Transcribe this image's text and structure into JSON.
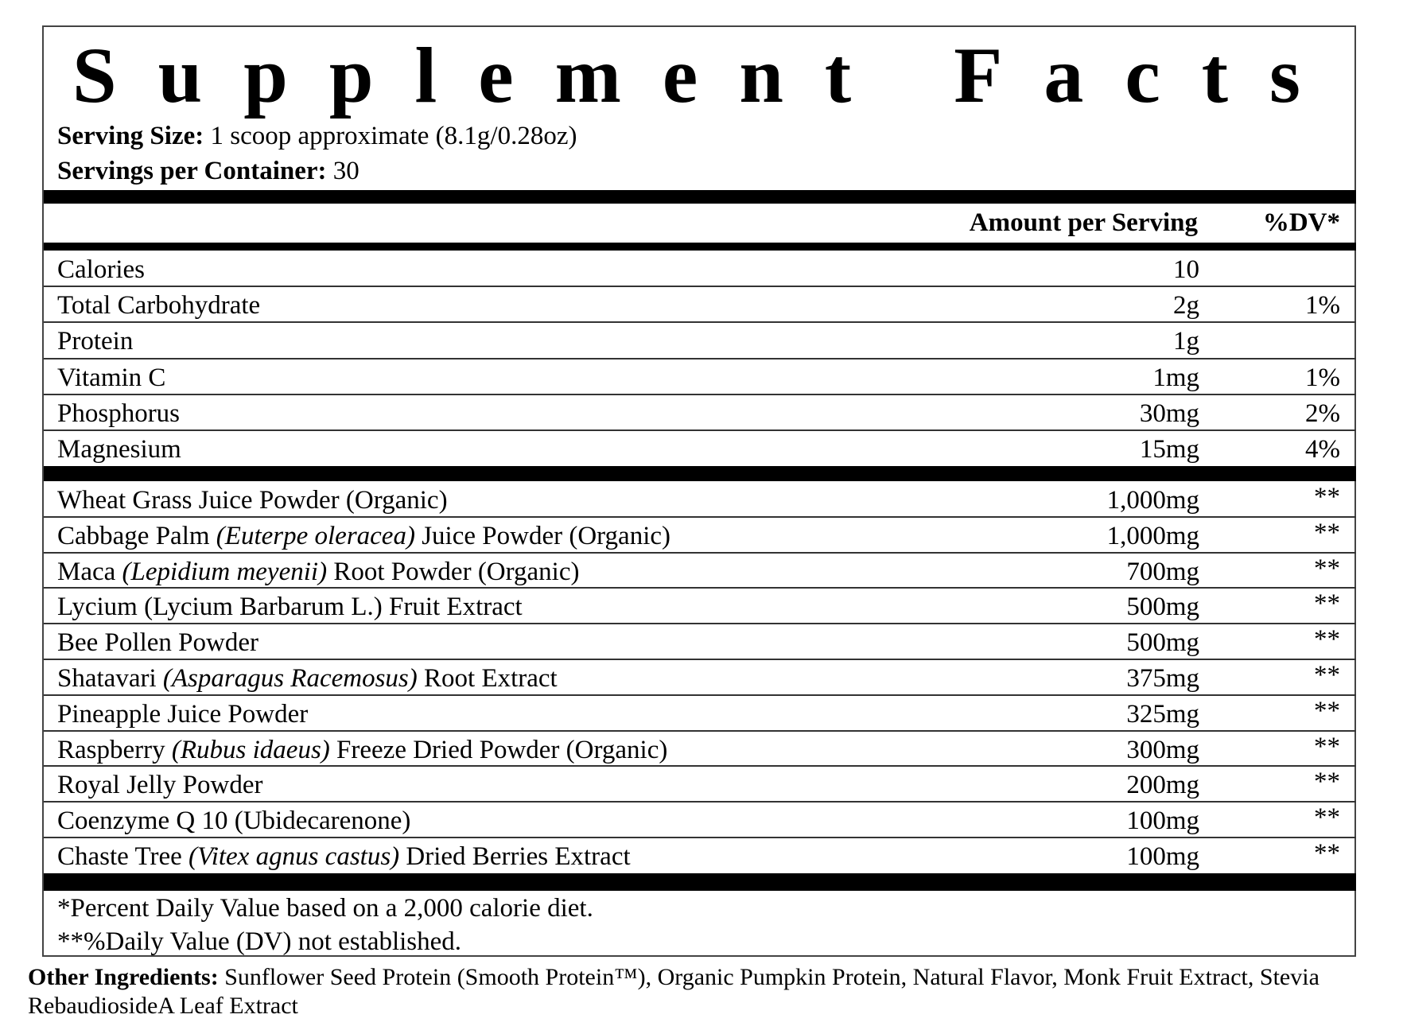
{
  "title": "Supplement Facts",
  "serving_size": {
    "label": "Serving Size:",
    "value": "1 scoop approximate (8.1g/0.28oz)"
  },
  "servings_per_container": {
    "label": "Servings per Container:",
    "value": "30"
  },
  "header": {
    "amount": "Amount per Serving",
    "dv": "%DV*"
  },
  "nutrients": [
    {
      "name": [
        "Calories"
      ],
      "amount": "10",
      "dv": null
    },
    {
      "name": [
        "Total Carbohydrate"
      ],
      "amount": "2g",
      "dv": "1%"
    },
    {
      "name": [
        "Protein"
      ],
      "amount": "1g",
      "dv": null
    },
    {
      "name": [
        "Vitamin C"
      ],
      "amount": "1mg",
      "dv": "1%"
    },
    {
      "name": [
        "Phosphorus"
      ],
      "amount": "30mg",
      "dv": "2%"
    },
    {
      "name": [
        "Magnesium"
      ],
      "amount": "15mg",
      "dv": "4%"
    }
  ],
  "ingredients": [
    {
      "name": [
        "Wheat Grass Juice Powder (Organic)"
      ],
      "amount": "1,000mg",
      "dv": "**"
    },
    {
      "name": [
        "Cabbage Palm ",
        "(Euterpe oleracea)",
        " Juice Powder (Organic)"
      ],
      "amount": "1,000mg",
      "dv": "**"
    },
    {
      "name": [
        "Maca ",
        "(Lepidium meyenii)",
        " Root Powder (Organic)"
      ],
      "amount": "700mg",
      "dv": "**"
    },
    {
      "name": [
        "Lycium (Lycium Barbarum L.) Fruit Extract"
      ],
      "amount": "500mg",
      "dv": "**"
    },
    {
      "name": [
        "Bee Pollen Powder"
      ],
      "amount": "500mg",
      "dv": "**"
    },
    {
      "name": [
        "Shatavari ",
        "(Asparagus Racemosus)",
        " Root Extract"
      ],
      "amount": "375mg",
      "dv": "**"
    },
    {
      "name": [
        "Pineapple Juice Powder"
      ],
      "amount": "325mg",
      "dv": "**"
    },
    {
      "name": [
        "Raspberry ",
        "(Rubus idaeus)",
        " Freeze Dried Powder (Organic)"
      ],
      "amount": "300mg",
      "dv": "**"
    },
    {
      "name": [
        "Royal Jelly Powder"
      ],
      "amount": "200mg",
      "dv": "**"
    },
    {
      "name": [
        "Coenzyme Q 10 (Ubidecarenone)"
      ],
      "amount": "100mg",
      "dv": "**"
    },
    {
      "name": [
        "Chaste Tree ",
        "(Vitex agnus castus)",
        " Dried Berries Extract"
      ],
      "amount": "100mg",
      "dv": "**"
    }
  ],
  "footnotes": [
    "*Percent Daily Value based on a 2,000 calorie diet.",
    "**%Daily Value (DV) not established."
  ],
  "other_ingredients": {
    "label": "Other Ingredients:",
    "value": "Sunflower Seed Protein (Smooth Protein™), Organic Pumpkin Protein, Natural Flavor, Monk Fruit Extract, Stevia RebaudiosideA Leaf Extract"
  }
}
